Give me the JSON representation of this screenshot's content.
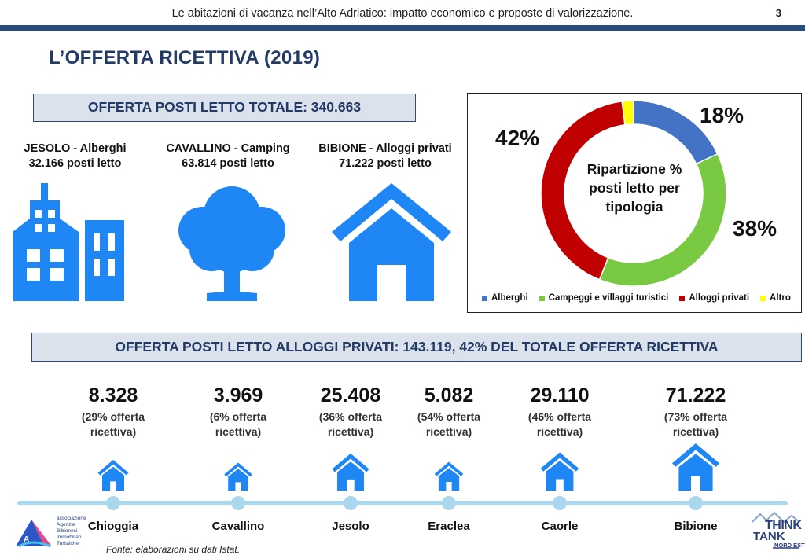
{
  "header": {
    "title": "Le abitazioni di vacanza nell’Alto Adriatico: impatto economico e proposte di valorizzazione.",
    "page_number": "3"
  },
  "main_title": "L’OFFERTA RICETTIVA (2019)",
  "total_box": "OFFERTA POSTI LETTO TOTALE: 340.663",
  "categories": [
    {
      "line1": "JESOLO - Alberghi",
      "line2": "32.166 posti letto",
      "icon": "buildings-icon"
    },
    {
      "line1": "CAVALLINO - Camping",
      "line2": "63.814 posti letto",
      "icon": "tree-icon"
    },
    {
      "line1": "BIBIONE - Alloggi privati",
      "line2": "71.222 posti letto",
      "icon": "house-icon"
    }
  ],
  "private_box": "OFFERTA POSTI LETTO ALLOGGI PRIVATI: 143.119, 42% DEL TOTALE OFFERTA RICETTIVA",
  "chart_data": [
    {
      "type": "pie",
      "title": "Ripartizione % posti letto per tipologia",
      "categories": [
        "Alberghi",
        "Campeggi e villaggi turistici",
        "Alloggi privati",
        "Altro"
      ],
      "values": [
        18,
        38,
        42,
        2
      ],
      "value_labels": [
        "18%",
        "38%",
        "42%",
        ""
      ],
      "colors": [
        "#4472c4",
        "#7ac943",
        "#c00000",
        "#ffff00"
      ],
      "legend_position": "bottom",
      "donut": true
    },
    {
      "type": "bar",
      "title": "",
      "categories": [
        "Chioggia",
        "Cavallino",
        "Jesolo",
        "Eraclea",
        "Caorle",
        "Bibione"
      ],
      "series": [
        {
          "values": [
            8328,
            3969,
            25408,
            5082,
            29110,
            71222
          ]
        }
      ],
      "value_labels": [
        "8.328",
        "3.969",
        "25.408",
        "5.082",
        "29.110",
        "71.222"
      ],
      "share_labels": [
        [
          "(29% offerta",
          "ricettiva)"
        ],
        [
          "(6% offerta",
          "ricettiva)"
        ],
        [
          "(36% offerta",
          "ricettiva)"
        ],
        [
          "(54% offerta",
          "ricettiva)"
        ],
        [
          "(46% offerta",
          "ricettiva)"
        ],
        [
          "(73% offerta",
          "ricettiva)"
        ]
      ],
      "icon": "house-icon"
    }
  ],
  "source": "Fonte: elaborazioni su dati Istat.",
  "logos": {
    "left": {
      "lines": [
        "associazione",
        "Agenzie",
        "Bibionesi",
        "Immobiliari",
        "Turistiche"
      ]
    },
    "right": {
      "line1": "THINK",
      "line2": "TANK",
      "line3": "NORD EST"
    }
  },
  "colors": {
    "accent_blue": "#2c4a7a",
    "icon_blue": "#1e86f5",
    "timeline": "#aad7ee"
  }
}
